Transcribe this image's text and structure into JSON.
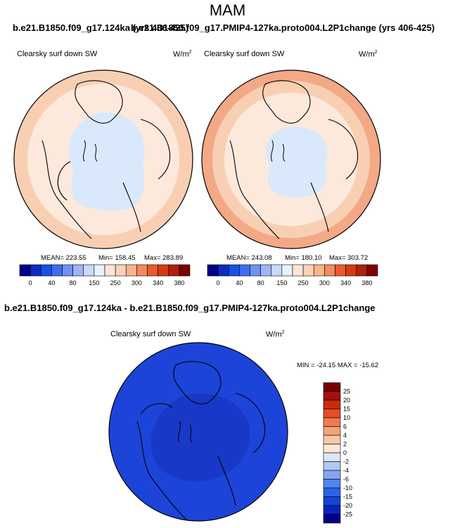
{
  "title": "MAM",
  "top_subtitle_left": "b.e21.B1850.f09_g17.124ka (yrs 406-425)",
  "top_subtitle_right": "b.e21.B1850.f09_g17.PMIP4-127ka.proto004.L2P1change (yrs 406-425)",
  "diff_subtitle": "b.e21.B1850.f09_g17.124ka - b.e21.B1850.f09_g17.PMIP4-127ka.proto004.L2P1change",
  "variable": "Clearsky surf down SW",
  "units_base": "W/m",
  "units_sup": "2",
  "colors": {
    "abs_scale": [
      "#00008b",
      "#0a2dbf",
      "#1750e6",
      "#3f6df0",
      "#6f91f2",
      "#9fb5f5",
      "#c9dafa",
      "#e8f1fc",
      "#fde6d6",
      "#fbd2b8",
      "#f6b48f",
      "#f2895f",
      "#ea5b2f",
      "#d63a15",
      "#b0200b",
      "#7f0000"
    ],
    "diff_scale": [
      "#00008b",
      "#0a23b8",
      "#1246db",
      "#2a64e6",
      "#5584ec",
      "#84a6f0",
      "#b3c8f5",
      "#dae6fa",
      "#fde7d8",
      "#f9c7a8",
      "#f4a27a",
      "#ee7a4d",
      "#e54e26",
      "#cc2a0c",
      "#a0120a",
      "#780000"
    ],
    "polar_dark_cap": "#1838c8",
    "polar_ocean": "#1d44d8"
  },
  "chart_data": [
    {
      "type": "heatmap",
      "projection": "north-polar-stereographic",
      "label": "Clearsky surf down SW",
      "units": "W/m2",
      "mean": "MEAN= 223.55",
      "min": "Min= 158.45",
      "max": "Max= 283.89",
      "colorbar_ticks": [
        "0",
        "40",
        "80",
        "150",
        "250",
        "300",
        "340",
        "380"
      ]
    },
    {
      "type": "heatmap",
      "projection": "north-polar-stereographic",
      "label": "Clearsky surf down SW",
      "units": "W/m2",
      "mean": "MEAN= 243.08",
      "min": "Min= 180.10",
      "max": "Max= 303.72",
      "colorbar_ticks": [
        "0",
        "40",
        "80",
        "150",
        "250",
        "300",
        "340",
        "380"
      ]
    },
    {
      "type": "heatmap",
      "projection": "north-polar-stereographic",
      "label": "Clearsky surf down SW",
      "units": "W/m2",
      "minmax": "MIN = -24.15 MAX = -15.62",
      "colorbar_ticks": [
        "25",
        "20",
        "15",
        "10",
        "6",
        "4",
        "2",
        "0",
        "-2",
        "-4",
        "-6",
        "-10",
        "-15",
        "-20",
        "-25"
      ]
    }
  ]
}
